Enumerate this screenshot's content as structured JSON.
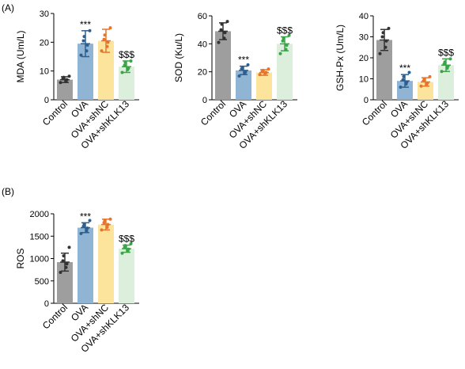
{
  "panels": [
    {
      "label": "(A)"
    },
    {
      "label": "(B)"
    }
  ],
  "chart_data": [
    {
      "type": "bar",
      "panel": "(A)",
      "ylabel": "MDA (Um/L)",
      "ylim": [
        0,
        30
      ],
      "yticks": [
        0,
        10,
        20,
        30
      ],
      "categories": [
        "Control",
        "OVA",
        "OVA+shNC",
        "OVA+shKLK13"
      ],
      "values": [
        7,
        19.5,
        20.5,
        11.5
      ],
      "errors": [
        1,
        4.5,
        4,
        2
      ],
      "annotations": [
        "",
        "***",
        "",
        "$$$"
      ],
      "points": [
        [
          6,
          6.5,
          7,
          7.3,
          7.8,
          8.2
        ],
        [
          15.5,
          17,
          19,
          20.5,
          22,
          24
        ],
        [
          17,
          18.5,
          20,
          21,
          22.5,
          25
        ],
        [
          9.5,
          10.5,
          11,
          12,
          13,
          13.5
        ]
      ],
      "colors": [
        "#9e9e9e",
        "#8fb4d4",
        "#fde49c",
        "#dcefdc"
      ],
      "point_colors": [
        "#333333",
        "#2e5f8e",
        "#e8742c",
        "#3aa447"
      ]
    },
    {
      "type": "bar",
      "panel": "(A)",
      "ylabel": "SOD (Ku/L)",
      "ylim": [
        0,
        60
      ],
      "yticks": [
        0,
        20,
        40,
        60
      ],
      "categories": [
        "Control",
        "OVA",
        "OVA+shNC",
        "OVA+shKLK13"
      ],
      "values": [
        49,
        21,
        19.5,
        40
      ],
      "errors": [
        6,
        3,
        2,
        5
      ],
      "annotations": [
        "",
        "***",
        "",
        "$$$"
      ],
      "points": [
        [
          41,
          44,
          48,
          50,
          54,
          56
        ],
        [
          17,
          19,
          20,
          22,
          23,
          25
        ],
        [
          18,
          19,
          19.5,
          20,
          21,
          22
        ],
        [
          33,
          36,
          39,
          42,
          44,
          46
        ]
      ],
      "colors": [
        "#9e9e9e",
        "#8fb4d4",
        "#fde49c",
        "#dcefdc"
      ],
      "point_colors": [
        "#333333",
        "#2e5f8e",
        "#e8742c",
        "#3aa447"
      ]
    },
    {
      "type": "bar",
      "panel": "(A)",
      "ylabel": "GSH-Px (Um/L)",
      "ylim": [
        0,
        40
      ],
      "yticks": [
        0,
        10,
        20,
        30,
        40
      ],
      "categories": [
        "Control",
        "OVA",
        "OVA+shNC",
        "OVA+shKLK13"
      ],
      "values": [
        28.5,
        9,
        8.5,
        16.5
      ],
      "errors": [
        5,
        3,
        2,
        3
      ],
      "annotations": [
        "",
        "***",
        "",
        "$$$"
      ],
      "points": [
        [
          22,
          25,
          28,
          30,
          32,
          34
        ],
        [
          6,
          7.5,
          8.5,
          9.5,
          11,
          13
        ],
        [
          6.5,
          7.5,
          8,
          9,
          10,
          11
        ],
        [
          13.5,
          15,
          16,
          17,
          18,
          19.5
        ]
      ],
      "colors": [
        "#9e9e9e",
        "#8fb4d4",
        "#fde49c",
        "#dcefdc"
      ],
      "point_colors": [
        "#333333",
        "#2e5f8e",
        "#e8742c",
        "#3aa447"
      ]
    },
    {
      "type": "bar",
      "panel": "(B)",
      "ylabel": "ROS",
      "ylim": [
        0,
        2000
      ],
      "yticks": [
        0,
        500,
        1000,
        1500,
        2000
      ],
      "categories": [
        "Control",
        "OVA",
        "OVA+shNC",
        "OVA+shKLK13"
      ],
      "values": [
        920,
        1690,
        1760,
        1220
      ],
      "errors": [
        200,
        110,
        120,
        80
      ],
      "annotations": [
        "",
        "***",
        "",
        "$$$"
      ],
      "points": [
        [
          690,
          800,
          880,
          950,
          1060,
          1250
        ],
        [
          1560,
          1620,
          1680,
          1720,
          1770,
          1850
        ],
        [
          1640,
          1700,
          1760,
          1800,
          1850,
          1880
        ],
        [
          1120,
          1170,
          1210,
          1250,
          1290,
          1330
        ]
      ],
      "colors": [
        "#9e9e9e",
        "#8fb4d4",
        "#fde49c",
        "#dcefdc"
      ],
      "point_colors": [
        "#333333",
        "#2e5f8e",
        "#e8742c",
        "#3aa447"
      ]
    }
  ]
}
